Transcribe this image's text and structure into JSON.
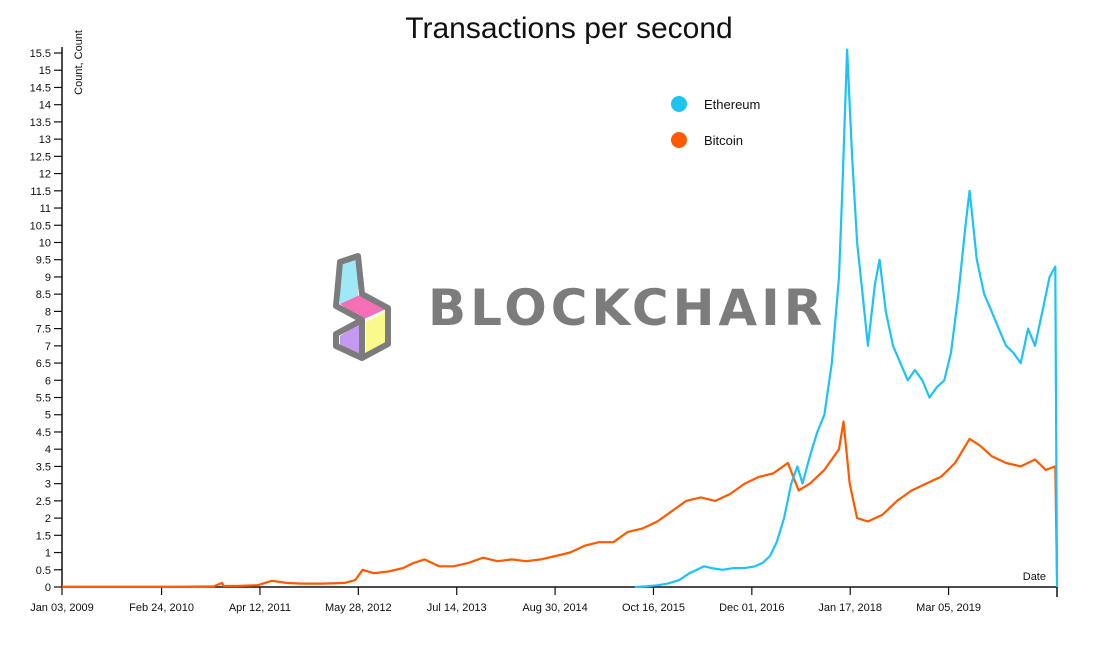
{
  "chart_data": {
    "type": "line",
    "title": "Transactions per second",
    "ylabel": "Count, Count",
    "xlabel": "Date",
    "x_range": [
      "2009-01-03",
      "2020-06-01"
    ],
    "ylim": [
      0,
      15.5
    ],
    "grid": false,
    "legend_position": "top-center",
    "y_ticks": [
      0,
      0.5,
      1,
      1.5,
      2,
      2.5,
      3,
      3.5,
      4,
      4.5,
      5,
      5.5,
      6,
      6.5,
      7,
      7.5,
      8,
      8.5,
      9,
      9.5,
      10,
      10.5,
      11,
      11.5,
      12,
      12.5,
      13,
      13.5,
      14,
      14.5,
      15,
      15.5
    ],
    "x_ticks": [
      {
        "date": "2009-01-03",
        "label": "Jan 03, 2009"
      },
      {
        "date": "2010-02-24",
        "label": "Feb 24, 2010"
      },
      {
        "date": "2011-04-12",
        "label": "Apr 12, 2011"
      },
      {
        "date": "2012-05-28",
        "label": "May 28, 2012"
      },
      {
        "date": "2013-07-14",
        "label": "Jul 14, 2013"
      },
      {
        "date": "2014-08-30",
        "label": "Aug 30, 2014"
      },
      {
        "date": "2015-10-16",
        "label": "Oct 16, 2015"
      },
      {
        "date": "2016-12-01",
        "label": "Dec 01, 2016"
      },
      {
        "date": "2018-01-17",
        "label": "Jan 17, 2018"
      },
      {
        "date": "2019-03-05",
        "label": "Mar 05, 2019"
      }
    ],
    "series": [
      {
        "name": "Ethereum",
        "color": "#1ec3f2",
        "points": [
          [
            "2015-07-30",
            0
          ],
          [
            "2015-09-15",
            0.02
          ],
          [
            "2015-11-01",
            0.05
          ],
          [
            "2015-12-15",
            0.1
          ],
          [
            "2016-02-01",
            0.2
          ],
          [
            "2016-03-15",
            0.4
          ],
          [
            "2016-04-15",
            0.5
          ],
          [
            "2016-05-15",
            0.6
          ],
          [
            "2016-06-15",
            0.55
          ],
          [
            "2016-08-01",
            0.5
          ],
          [
            "2016-09-15",
            0.55
          ],
          [
            "2016-11-01",
            0.55
          ],
          [
            "2016-12-15",
            0.6
          ],
          [
            "2017-01-15",
            0.7
          ],
          [
            "2017-02-15",
            0.9
          ],
          [
            "2017-03-15",
            1.3
          ],
          [
            "2017-04-15",
            2.0
          ],
          [
            "2017-05-15",
            3.0
          ],
          [
            "2017-06-10",
            3.5
          ],
          [
            "2017-07-01",
            3.0
          ],
          [
            "2017-08-01",
            3.8
          ],
          [
            "2017-09-01",
            4.5
          ],
          [
            "2017-10-01",
            5.0
          ],
          [
            "2017-11-01",
            6.5
          ],
          [
            "2017-12-01",
            9.0
          ],
          [
            "2017-12-15",
            11.5
          ],
          [
            "2018-01-04",
            15.6
          ],
          [
            "2018-01-25",
            12.5
          ],
          [
            "2018-02-15",
            10.0
          ],
          [
            "2018-03-10",
            8.5
          ],
          [
            "2018-04-01",
            7.0
          ],
          [
            "2018-05-01",
            8.8
          ],
          [
            "2018-05-20",
            9.5
          ],
          [
            "2018-06-15",
            8.0
          ],
          [
            "2018-07-15",
            7.0
          ],
          [
            "2018-08-15",
            6.5
          ],
          [
            "2018-09-15",
            6.0
          ],
          [
            "2018-10-15",
            6.3
          ],
          [
            "2018-11-15",
            6.0
          ],
          [
            "2018-12-15",
            5.5
          ],
          [
            "2019-01-15",
            5.8
          ],
          [
            "2019-02-15",
            6.0
          ],
          [
            "2019-03-15",
            6.8
          ],
          [
            "2019-04-15",
            8.5
          ],
          [
            "2019-05-15",
            10.5
          ],
          [
            "2019-06-01",
            11.5
          ],
          [
            "2019-07-01",
            9.5
          ],
          [
            "2019-08-01",
            8.5
          ],
          [
            "2019-09-01",
            8.0
          ],
          [
            "2019-10-01",
            7.5
          ],
          [
            "2019-11-01",
            7.0
          ],
          [
            "2019-12-01",
            6.8
          ],
          [
            "2020-01-01",
            6.5
          ],
          [
            "2020-02-01",
            7.5
          ],
          [
            "2020-03-01",
            7.0
          ],
          [
            "2020-04-01",
            8.0
          ],
          [
            "2020-05-01",
            9.0
          ],
          [
            "2020-05-25",
            9.3
          ],
          [
            "2020-06-01",
            0
          ]
        ]
      },
      {
        "name": "Bitcoin",
        "color": "#ff5a00",
        "points": [
          [
            "2009-01-03",
            0.01
          ],
          [
            "2010-01-01",
            0.01
          ],
          [
            "2010-06-01",
            0.01
          ],
          [
            "2010-10-01",
            0.02
          ],
          [
            "2010-11-05",
            0.12
          ],
          [
            "2010-11-10",
            0.03
          ],
          [
            "2011-01-01",
            0.03
          ],
          [
            "2011-04-01",
            0.05
          ],
          [
            "2011-06-01",
            0.18
          ],
          [
            "2011-08-01",
            0.12
          ],
          [
            "2011-10-01",
            0.1
          ],
          [
            "2012-01-01",
            0.1
          ],
          [
            "2012-04-01",
            0.12
          ],
          [
            "2012-05-15",
            0.2
          ],
          [
            "2012-06-15",
            0.5
          ],
          [
            "2012-08-01",
            0.4
          ],
          [
            "2012-10-01",
            0.45
          ],
          [
            "2012-12-01",
            0.55
          ],
          [
            "2013-01-15",
            0.7
          ],
          [
            "2013-03-01",
            0.8
          ],
          [
            "2013-05-01",
            0.6
          ],
          [
            "2013-07-01",
            0.6
          ],
          [
            "2013-09-01",
            0.7
          ],
          [
            "2013-11-01",
            0.85
          ],
          [
            "2014-01-01",
            0.75
          ],
          [
            "2014-03-01",
            0.8
          ],
          [
            "2014-05-01",
            0.75
          ],
          [
            "2014-07-01",
            0.8
          ],
          [
            "2014-09-01",
            0.9
          ],
          [
            "2014-11-01",
            1.0
          ],
          [
            "2015-01-01",
            1.2
          ],
          [
            "2015-03-01",
            1.3
          ],
          [
            "2015-05-01",
            1.3
          ],
          [
            "2015-07-01",
            1.6
          ],
          [
            "2015-09-01",
            1.7
          ],
          [
            "2015-11-01",
            1.9
          ],
          [
            "2016-01-01",
            2.2
          ],
          [
            "2016-03-01",
            2.5
          ],
          [
            "2016-05-01",
            2.6
          ],
          [
            "2016-07-01",
            2.5
          ],
          [
            "2016-09-01",
            2.7
          ],
          [
            "2016-11-01",
            3.0
          ],
          [
            "2017-01-01",
            3.2
          ],
          [
            "2017-03-01",
            3.3
          ],
          [
            "2017-05-01",
            3.6
          ],
          [
            "2017-06-15",
            2.8
          ],
          [
            "2017-08-01",
            3.0
          ],
          [
            "2017-10-01",
            3.4
          ],
          [
            "2017-12-01",
            4.0
          ],
          [
            "2017-12-20",
            4.8
          ],
          [
            "2018-01-15",
            3.0
          ],
          [
            "2018-02-15",
            2.0
          ],
          [
            "2018-04-01",
            1.9
          ],
          [
            "2018-06-01",
            2.1
          ],
          [
            "2018-08-01",
            2.5
          ],
          [
            "2018-10-01",
            2.8
          ],
          [
            "2018-12-01",
            3.0
          ],
          [
            "2019-02-01",
            3.2
          ],
          [
            "2019-04-01",
            3.6
          ],
          [
            "2019-06-01",
            4.3
          ],
          [
            "2019-07-15",
            4.1
          ],
          [
            "2019-09-01",
            3.8
          ],
          [
            "2019-11-01",
            3.6
          ],
          [
            "2020-01-01",
            3.5
          ],
          [
            "2020-03-01",
            3.7
          ],
          [
            "2020-04-15",
            3.4
          ],
          [
            "2020-05-25",
            3.5
          ],
          [
            "2020-06-01",
            0.3
          ]
        ]
      }
    ]
  },
  "watermark": {
    "text": "BLOCKCHAIR",
    "text_color": "#7c7c7c",
    "cube_colors": [
      "#9fe8f8",
      "#f46fb6",
      "#c49af0",
      "#fafa8c"
    ],
    "outline_color": "#7c7c7c"
  }
}
